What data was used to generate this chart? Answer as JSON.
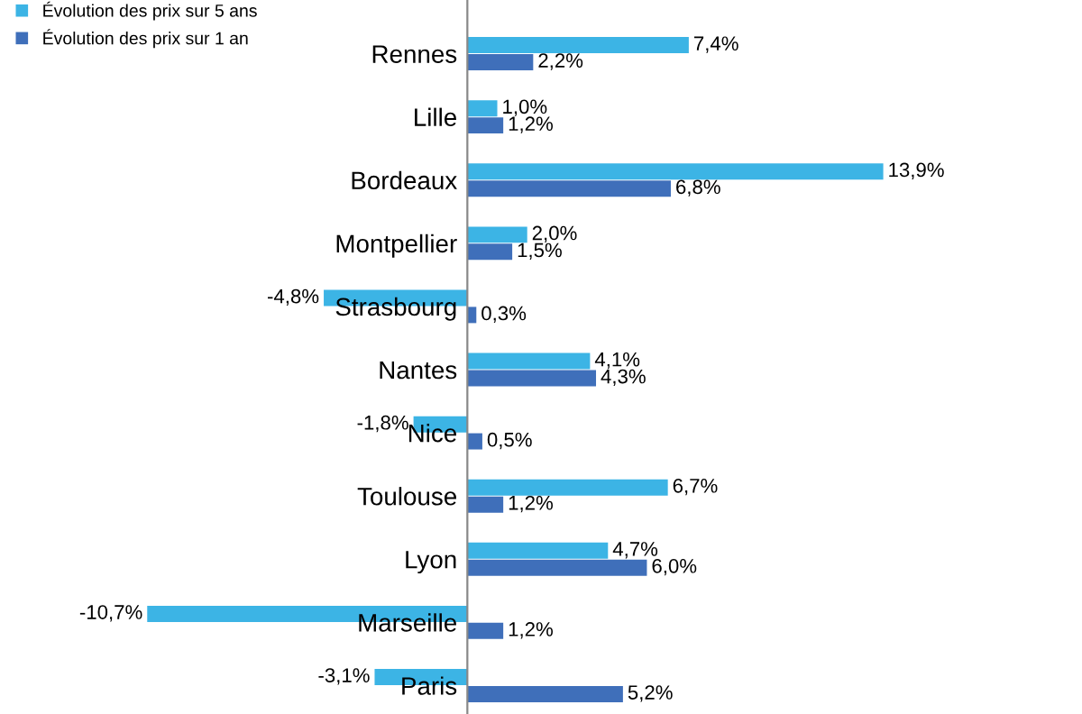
{
  "chart_data": {
    "type": "bar",
    "orientation": "horizontal",
    "categories": [
      "Rennes",
      "Lille",
      "Bordeaux",
      "Montpellier",
      "Strasbourg",
      "Nantes",
      "Nice",
      "Toulouse",
      "Lyon",
      "Marseille",
      "Paris"
    ],
    "series": [
      {
        "name": "Évolution des prix sur 5 ans",
        "color": "#3cb4e5",
        "values": [
          7.4,
          1.0,
          13.9,
          2.0,
          -4.8,
          4.1,
          -1.8,
          6.7,
          4.7,
          -10.7,
          -3.1
        ],
        "value_labels": [
          "7,4%",
          "1,0%",
          "13,9%",
          "2,0%",
          "-4,8%",
          "4,1%",
          "-1,8%",
          "6,7%",
          "4,7%",
          "-10,7%",
          "-3,1%"
        ]
      },
      {
        "name": "Évolution des prix sur 1 an",
        "color": "#3f6fba",
        "values": [
          2.2,
          1.2,
          6.8,
          1.5,
          0.3,
          4.3,
          0.5,
          1.2,
          6.0,
          1.2,
          5.2
        ],
        "value_labels": [
          "2,2%",
          "1,2%",
          "6,8%",
          "1,5%",
          "0,3%",
          "4,3%",
          "0,5%",
          "1,2%",
          "6,0%",
          "1,2%",
          "5,2%"
        ]
      }
    ],
    "legend": "top left",
    "grid": false
  }
}
